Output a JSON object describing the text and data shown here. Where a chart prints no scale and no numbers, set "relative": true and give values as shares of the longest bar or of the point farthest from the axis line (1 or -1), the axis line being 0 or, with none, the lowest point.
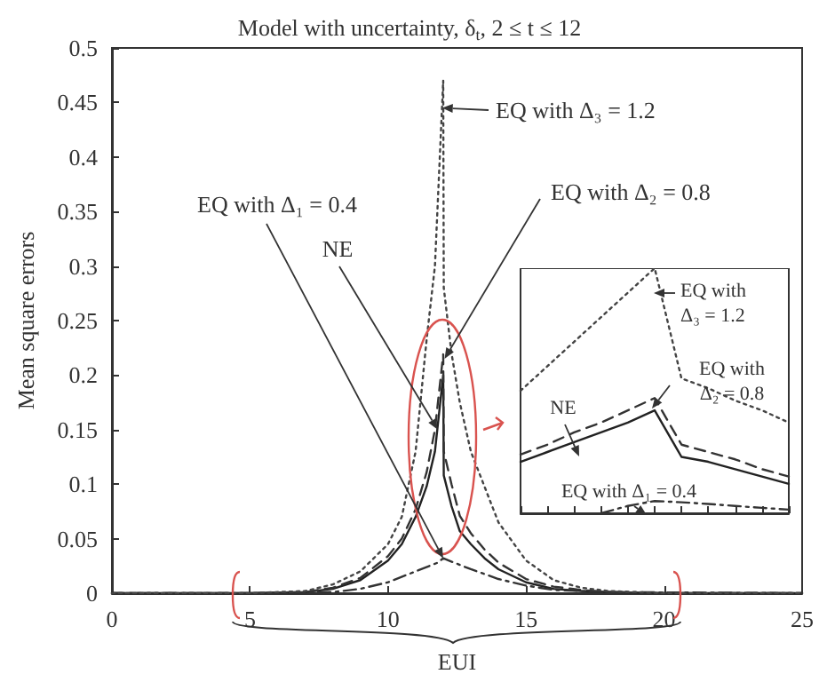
{
  "chart_data": [
    {
      "type": "line",
      "title": "Model with uncertainty, δ$_{t}$, 2 ≤ t ≤ 12",
      "xlabel": "EUI",
      "ylabel": "Mean square errors",
      "xlim": [
        0,
        25
      ],
      "xticks": [
        0,
        5,
        10,
        15,
        20,
        25
      ],
      "ylim": [
        0,
        0.5
      ],
      "yticks": [
        0,
        0.05,
        0.1,
        0.15,
        0.2,
        0.25,
        0.3,
        0.35,
        0.4,
        0.45,
        0.5
      ],
      "grid": false,
      "marker": "none",
      "series": [
        {
          "color": "#222222",
          "line_style": "solid",
          "x": [
            0,
            5,
            7,
            8,
            9,
            10,
            10.5,
            11,
            11.4,
            11.7,
            12,
            12.02,
            12.3,
            12.6,
            13,
            13.5,
            14,
            15,
            16,
            17,
            18,
            20,
            25
          ],
          "values": [
            0,
            0,
            0.001,
            0.004,
            0.012,
            0.03,
            0.045,
            0.07,
            0.098,
            0.13,
            0.2,
            0.108,
            0.08,
            0.057,
            0.045,
            0.032,
            0.022,
            0.01,
            0.004,
            0.002,
            0.001,
            0,
            0
          ]
        },
        {
          "color": "#333333",
          "line_style": "dashed",
          "x": [
            0,
            5,
            7,
            8,
            9,
            10,
            10.5,
            11,
            11.4,
            11.7,
            12,
            12.02,
            12.3,
            12.6,
            13,
            13.5,
            14,
            15,
            16,
            17,
            18,
            20,
            25
          ],
          "values": [
            0,
            0,
            0.001,
            0.005,
            0.014,
            0.034,
            0.05,
            0.077,
            0.111,
            0.15,
            0.219,
            0.13,
            0.1,
            0.071,
            0.055,
            0.04,
            0.028,
            0.013,
            0.006,
            0.003,
            0.001,
            0,
            0
          ]
        },
        {
          "color": "#333333",
          "line_style": "dashdot",
          "x": [
            0,
            5,
            8,
            9,
            10,
            11,
            11.8,
            12,
            12.6,
            13,
            14,
            15,
            16,
            18,
            25
          ],
          "values": [
            0,
            0,
            0.001,
            0.004,
            0.01,
            0.02,
            0.028,
            0.032,
            0.026,
            0.022,
            0.013,
            0.007,
            0.003,
            0.001,
            0
          ]
        },
        {
          "color": "#444444",
          "line_style": "dotted",
          "x": [
            0,
            5,
            7,
            8,
            9,
            10,
            10.5,
            11,
            11.4,
            11.7,
            12,
            12.02,
            12.3,
            12.6,
            13,
            14,
            15,
            16,
            17,
            18,
            20,
            25
          ],
          "values": [
            0,
            0,
            0.002,
            0.008,
            0.02,
            0.045,
            0.07,
            0.13,
            0.233,
            0.3,
            0.47,
            0.28,
            0.22,
            0.175,
            0.13,
            0.065,
            0.03,
            0.012,
            0.005,
            0.002,
            0,
            0
          ]
        }
      ],
      "annotations": [
        {
          "text": "EQ with Δ₃ = 1.2",
          "x": 11.96,
          "y": 0.445
        },
        {
          "text": "EQ with Δ₂ = 0.8",
          "x": 12.05,
          "y": 0.215
        },
        {
          "text": "EQ with Δ₁ = 0.4",
          "x": 12,
          "y": 0.032
        },
        {
          "text": "NE",
          "x": 11.8,
          "y": 0.15
        }
      ]
    },
    {
      "type": "line",
      "relative": true,
      "categories": [
        null,
        null,
        null,
        null,
        null,
        null,
        null,
        null,
        null,
        null,
        null
      ],
      "grid": false,
      "marker": "none",
      "series": [
        {
          "color": "#222222",
          "line_style": "solid",
          "values": [
            0.21,
            0.25,
            0.29,
            0.33,
            0.37,
            0.42,
            0.23,
            0.21,
            0.18,
            0.15,
            0.12
          ]
        },
        {
          "color": "#333333",
          "line_style": "dashed",
          "values": [
            0.24,
            0.28,
            0.33,
            0.37,
            0.42,
            0.47,
            0.28,
            0.25,
            0.22,
            0.18,
            0.15
          ]
        },
        {
          "color": "#333333",
          "line_style": "dashdot",
          "values": [
            null,
            null,
            null,
            0,
            0.03,
            0.05,
            0.045,
            0.038,
            0.03,
            0.022,
            0.015
          ]
        },
        {
          "color": "#444444",
          "line_style": "dotted",
          "values": [
            0.5,
            0.6,
            0.7,
            0.8,
            0.9,
            1,
            0.55,
            0.51,
            0.46,
            0.42,
            0.37
          ]
        }
      ],
      "annotations": [
        "EQ with\nΔ₃ = 1.2",
        "EQ with\nΔ₂ = 0.8",
        "NE",
        "EQ with Δ₁ = 0.4"
      ]
    }
  ]
}
